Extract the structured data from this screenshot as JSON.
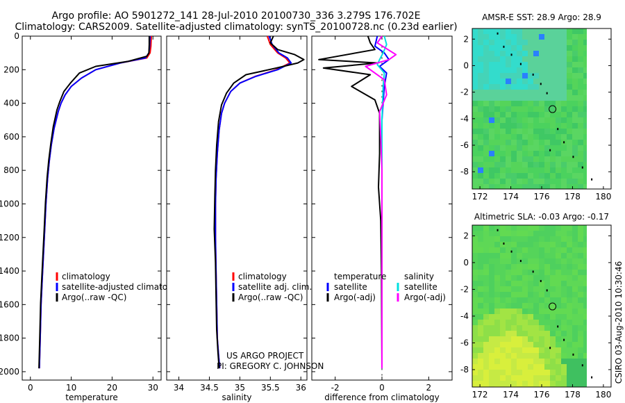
{
  "header": {
    "line1": "Argo profile: AO 5901272_141 28-Jul-2010 20100730_336 3.279S 176.702E",
    "line2": "Climatology: CARS2009. Satellite-adjusted climatology: synTS_20100728.nc (0.23d earlier)"
  },
  "footer": {
    "project": "US ARGO PROJECT",
    "pi": "PI: GREGORY C. JOHNSON",
    "credit": "CSIRO 03-Aug-2010 10:30:46"
  },
  "colors": {
    "climatology": "#ff0000",
    "satellite": "#0000ff",
    "argo": "#000000",
    "salinity_satellite": "#00e0e0",
    "salinity_argo": "#ff00ff"
  },
  "chart_data": [
    {
      "type": "line",
      "id": "temperature",
      "xlabel": "temperature",
      "xlim": [
        -2,
        32
      ],
      "xticks": [
        0,
        10,
        20,
        30
      ],
      "ylim": [
        0,
        2050
      ],
      "yticks": [
        0,
        200,
        400,
        600,
        800,
        1000,
        1200,
        1400,
        1600,
        1800,
        2000
      ],
      "legend": [
        "climatology",
        "satellite-adjusted climatology",
        "Argo(..raw -QC)"
      ],
      "series": [
        {
          "name": "climatology",
          "color": "#ff0000",
          "x": [
            29.6,
            29.5,
            29.3,
            28.5,
            22.0,
            16.0,
            12.5,
            10.0,
            8.5,
            7.5,
            6.8,
            5.8,
            5.1,
            4.6,
            4.2,
            3.8,
            3.5,
            3.2,
            2.9,
            2.6,
            2.4,
            2.2
          ],
          "y": [
            0,
            60,
            100,
            130,
            160,
            200,
            250,
            300,
            350,
            400,
            450,
            550,
            650,
            750,
            850,
            1000,
            1150,
            1300,
            1450,
            1600,
            1800,
            1980
          ]
        },
        {
          "name": "satellite-adjusted climatology",
          "color": "#0000ff",
          "x": [
            29.3,
            29.2,
            29.0,
            28.2,
            22.0,
            16.0,
            12.5,
            10.0,
            8.5,
            7.5,
            6.8,
            5.8,
            5.1,
            4.6,
            4.2,
            3.8,
            3.5,
            3.2,
            2.9,
            2.6,
            2.4,
            2.2
          ],
          "y": [
            0,
            60,
            100,
            130,
            160,
            200,
            250,
            300,
            350,
            400,
            450,
            550,
            650,
            750,
            850,
            1000,
            1150,
            1300,
            1450,
            1600,
            1800,
            1980
          ]
        },
        {
          "name": "Argo(..raw -QC)",
          "color": "#000000",
          "x": [
            29.1,
            29.1,
            29.0,
            28.5,
            24.0,
            16.0,
            12.0,
            9.8,
            8.2,
            7.2,
            6.5,
            5.6,
            5.0,
            4.5,
            4.1,
            3.7,
            3.4,
            3.1,
            2.8,
            2.5,
            2.3,
            2.1
          ],
          "y": [
            0,
            50,
            100,
            120,
            150,
            180,
            220,
            280,
            330,
            390,
            440,
            540,
            640,
            740,
            840,
            990,
            1140,
            1290,
            1440,
            1590,
            1790,
            1980
          ]
        }
      ]
    },
    {
      "type": "line",
      "id": "salinity",
      "xlabel": "salinity",
      "xlim": [
        33.8,
        36.1
      ],
      "xticks": [
        34,
        34.5,
        35,
        35.5,
        36
      ],
      "xticklabels": [
        "34",
        "34.5",
        "35",
        "35.5",
        "36"
      ],
      "ylim": [
        0,
        2050
      ],
      "legend": [
        "climatology",
        "satellite adj. clim.",
        "Argo(..raw -QC)"
      ],
      "series": [
        {
          "name": "climatology",
          "color": "#ff0000",
          "x": [
            35.45,
            35.5,
            35.62,
            35.75,
            35.82,
            35.6,
            35.25,
            35.0,
            34.85,
            34.75,
            34.7,
            34.66,
            34.63,
            34.61,
            34.6,
            34.6,
            34.61,
            34.62,
            34.63,
            34.65,
            34.67
          ],
          "y": [
            0,
            50,
            100,
            130,
            160,
            200,
            240,
            280,
            330,
            400,
            460,
            560,
            700,
            850,
            1000,
            1200,
            1400,
            1600,
            1800,
            1900,
            1980
          ]
        },
        {
          "name": "satellite adj. clim.",
          "color": "#0000ff",
          "x": [
            35.48,
            35.53,
            35.64,
            35.78,
            35.84,
            35.62,
            35.26,
            35.0,
            34.85,
            34.75,
            34.7,
            34.66,
            34.63,
            34.61,
            34.6,
            34.6,
            34.61,
            34.62,
            34.63,
            34.65,
            34.67
          ],
          "y": [
            0,
            50,
            100,
            130,
            160,
            200,
            240,
            280,
            330,
            400,
            460,
            560,
            700,
            850,
            1000,
            1200,
            1400,
            1600,
            1800,
            1900,
            1980
          ]
        },
        {
          "name": "Argo(..raw -QC)",
          "color": "#000000",
          "x": [
            35.55,
            35.5,
            35.62,
            35.9,
            36.05,
            35.95,
            35.6,
            35.1,
            34.9,
            34.78,
            34.7,
            34.65,
            34.62,
            34.6,
            34.59,
            34.58,
            34.6,
            34.61,
            34.62,
            34.64,
            34.66
          ],
          "y": [
            0,
            40,
            80,
            110,
            140,
            160,
            190,
            230,
            280,
            340,
            410,
            510,
            650,
            800,
            950,
            1150,
            1350,
            1550,
            1750,
            1880,
            1980
          ]
        }
      ]
    },
    {
      "type": "line",
      "id": "difference",
      "xlabel": "difference from climatology",
      "xlim": [
        -3,
        3
      ],
      "xticks": [
        -2,
        0,
        2
      ],
      "ylim": [
        0,
        2050
      ],
      "legend": [
        "temperature",
        "satellite",
        "Argo(-adj)",
        "salinity",
        "satellite",
        "Argo(-adj)"
      ],
      "series": [
        {
          "name": "temperature satellite",
          "color": "#0000ff",
          "x": [
            -0.2,
            -0.3,
            0.1,
            0.3,
            -0.1,
            0.2,
            0.1,
            0.0,
            0.0,
            0.0,
            0.0
          ],
          "y": [
            0,
            60,
            100,
            140,
            180,
            220,
            300,
            500,
            1000,
            1500,
            1980
          ]
        },
        {
          "name": "temperature Argo(-adj)",
          "color": "#000000",
          "x": [
            -0.6,
            -0.5,
            -0.3,
            -2.7,
            -0.2,
            -2.5,
            -0.5,
            -1.3,
            -0.3,
            -0.1,
            -0.1,
            -0.1,
            -0.15,
            -0.05,
            -0.02,
            0.0
          ],
          "y": [
            0,
            40,
            80,
            140,
            160,
            190,
            230,
            300,
            380,
            460,
            560,
            700,
            900,
            1100,
            1400,
            1980
          ]
        },
        {
          "name": "salinity satellite",
          "color": "#00e0e0",
          "x": [
            0.1,
            0.2,
            0.05,
            -0.1,
            -0.2,
            0.1,
            0.05,
            0.0,
            0.0,
            0.0,
            0.0,
            0.0
          ],
          "y": [
            0,
            50,
            100,
            140,
            170,
            220,
            300,
            500,
            800,
            1200,
            1600,
            1980
          ]
        },
        {
          "name": "salinity Argo(-adj)",
          "color": "#ff00ff",
          "x": [
            0.0,
            -0.2,
            0.6,
            0.3,
            -0.7,
            0.1,
            0.2,
            -0.1,
            -0.05,
            0.0,
            0.0
          ],
          "y": [
            0,
            40,
            110,
            140,
            180,
            260,
            350,
            450,
            600,
            800,
            1980
          ]
        }
      ]
    },
    {
      "type": "heatmap",
      "id": "amsre_sst_map",
      "title": "AMSR-E SST: 28.9 Argo: 28.9",
      "xlim": [
        171.5,
        180.5
      ],
      "xticks": [
        172,
        174,
        176,
        178,
        180
      ],
      "ylim": [
        -9.3,
        2.8
      ],
      "yticks": [
        -8,
        -6,
        -4,
        -2,
        0,
        2
      ],
      "profile_marker": {
        "lon": 176.702,
        "lat": -3.279
      }
    },
    {
      "type": "heatmap",
      "id": "altimetric_sla_map",
      "title": "Altimetric SLA: -0.03 Argo: -0.17",
      "xlim": [
        171.5,
        180.5
      ],
      "xticks": [
        172,
        174,
        176,
        178,
        180
      ],
      "ylim": [
        -9.3,
        2.8
      ],
      "yticks": [
        -8,
        -6,
        -4,
        -2,
        0,
        2
      ],
      "profile_marker": {
        "lon": 176.702,
        "lat": -3.279
      }
    }
  ]
}
